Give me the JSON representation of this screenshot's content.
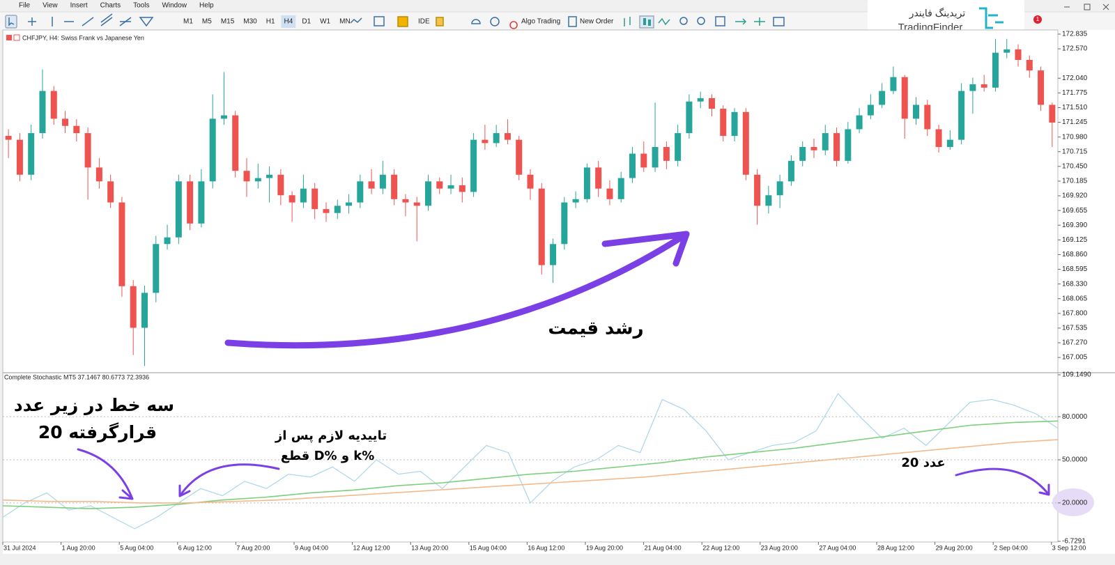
{
  "menu": [
    "File",
    "View",
    "Insert",
    "Charts",
    "Tools",
    "Window",
    "Help"
  ],
  "toolbar": {
    "timeframes": [
      "M1",
      "M5",
      "M15",
      "M30",
      "H1",
      "H4",
      "D1",
      "W1",
      "MN"
    ],
    "active": "H4",
    "ide": "IDE",
    "algo": "Algo Trading",
    "order": "New Order"
  },
  "logo": {
    "fa": "تریدینگ فایندر",
    "en": "TradingFinder"
  },
  "notification": "1",
  "chart_data": [
    {
      "type": "candlestick",
      "title": "CHFJPY, H4:  Swiss Frank vs Japanese Yen",
      "up_color": "#26a69a",
      "down_color": "#ef5350",
      "ylim": [
        166.755,
        172.91
      ],
      "yticks": [
        172.835,
        {
          "value": 172.57,
          "label": "172.570"
        },
        {
          "value": 172.04,
          "label": "172.040"
        },
        171.775,
        {
          "value": 171.51,
          "label": "171.510"
        },
        171.245,
        {
          "value": 170.98,
          "label": "170.980"
        },
        170.715,
        {
          "value": 170.45,
          "label": "170.450"
        },
        170.185,
        {
          "value": 169.92,
          "label": "169.920"
        },
        169.655,
        {
          "value": 169.39,
          "label": "169.390"
        },
        169.125,
        {
          "value": 168.86,
          "label": "168.860"
        },
        168.595,
        {
          "value": 168.33,
          "label": "168.330"
        },
        168.065,
        {
          "value": 167.8,
          "label": "167.800"
        },
        167.535,
        {
          "value": 167.27,
          "label": "167.270"
        },
        {
          "value": 167.005,
          "label": "167.005"
        }
      ],
      "ohlc": [
        [
          171.0,
          171.12,
          170.6,
          170.93
        ],
        [
          170.93,
          171.05,
          170.18,
          170.3
        ],
        [
          170.3,
          171.2,
          170.2,
          171.05
        ],
        [
          171.05,
          172.2,
          170.95,
          171.81
        ],
        [
          171.81,
          171.9,
          171.2,
          171.31
        ],
        [
          171.31,
          171.45,
          171.05,
          171.18
        ],
        [
          171.18,
          171.3,
          170.9,
          171.05
        ],
        [
          171.05,
          171.15,
          169.85,
          170.43
        ],
        [
          170.43,
          170.6,
          170.05,
          170.18
        ],
        [
          170.18,
          170.3,
          169.7,
          169.8
        ],
        [
          169.8,
          169.9,
          168.1,
          168.29
        ],
        [
          168.29,
          168.4,
          167.05,
          167.54
        ],
        [
          167.54,
          168.3,
          166.85,
          168.17
        ],
        [
          168.17,
          169.2,
          168.0,
          169.05
        ],
        [
          169.05,
          169.4,
          168.95,
          169.17
        ],
        [
          169.17,
          170.3,
          169.05,
          170.18
        ],
        [
          170.18,
          170.3,
          169.3,
          169.42
        ],
        [
          169.42,
          170.4,
          169.35,
          170.18
        ],
        [
          170.18,
          171.75,
          170.05,
          171.31
        ],
        [
          171.31,
          172.15,
          171.2,
          171.37
        ],
        [
          171.37,
          171.45,
          170.25,
          170.37
        ],
        [
          170.37,
          170.6,
          169.9,
          170.18
        ],
        [
          170.18,
          170.5,
          170.05,
          170.24
        ],
        [
          170.24,
          170.45,
          169.8,
          170.3
        ],
        [
          170.3,
          170.4,
          169.75,
          169.93
        ],
        [
          169.93,
          170.0,
          169.45,
          169.8
        ],
        [
          169.8,
          170.3,
          169.7,
          170.05
        ],
        [
          170.05,
          170.15,
          169.5,
          169.68
        ],
        [
          169.68,
          169.8,
          169.45,
          169.61
        ],
        [
          169.61,
          169.85,
          169.5,
          169.74
        ],
        [
          169.74,
          169.95,
          169.6,
          169.8
        ],
        [
          169.8,
          170.3,
          169.7,
          170.18
        ],
        [
          170.18,
          170.4,
          169.95,
          170.05
        ],
        [
          170.05,
          170.55,
          169.95,
          170.3
        ],
        [
          170.3,
          170.4,
          169.75,
          169.86
        ],
        [
          169.86,
          169.95,
          169.55,
          169.8
        ],
        [
          169.8,
          169.9,
          169.1,
          169.74
        ],
        [
          169.74,
          170.3,
          169.65,
          170.18
        ],
        [
          170.18,
          170.25,
          169.95,
          170.05
        ],
        [
          170.05,
          170.3,
          169.95,
          170.11
        ],
        [
          170.11,
          170.25,
          169.8,
          169.99
        ],
        [
          169.99,
          171.05,
          169.9,
          170.93
        ],
        [
          170.93,
          171.2,
          170.75,
          170.87
        ],
        [
          170.87,
          171.2,
          170.8,
          171.05
        ],
        [
          171.05,
          171.3,
          170.85,
          170.93
        ],
        [
          170.93,
          171.0,
          170.2,
          170.3
        ],
        [
          170.3,
          170.4,
          169.85,
          170.05
        ],
        [
          170.05,
          170.15,
          168.5,
          168.67
        ],
        [
          168.67,
          169.15,
          168.35,
          169.05
        ],
        [
          169.05,
          169.9,
          168.95,
          169.8
        ],
        [
          169.8,
          170.0,
          169.7,
          169.86
        ],
        [
          169.86,
          170.5,
          169.8,
          170.43
        ],
        [
          170.43,
          170.55,
          169.9,
          170.05
        ],
        [
          170.05,
          170.2,
          169.75,
          169.86
        ],
        [
          169.86,
          170.35,
          169.8,
          170.24
        ],
        [
          170.24,
          170.8,
          170.15,
          170.68
        ],
        [
          170.68,
          170.9,
          170.35,
          170.43
        ],
        [
          170.43,
          171.6,
          170.35,
          170.8
        ],
        [
          170.8,
          170.9,
          170.4,
          170.55
        ],
        [
          170.55,
          171.2,
          170.45,
          171.05
        ],
        [
          171.05,
          171.75,
          170.95,
          171.62
        ],
        [
          171.62,
          171.8,
          171.5,
          171.68
        ],
        [
          171.68,
          171.75,
          171.35,
          171.49
        ],
        [
          171.49,
          171.55,
          170.9,
          171.0
        ],
        [
          171.0,
          171.5,
          170.9,
          171.43
        ],
        [
          171.43,
          171.5,
          170.2,
          170.3
        ],
        [
          170.3,
          170.4,
          169.4,
          169.74
        ],
        [
          169.74,
          170.1,
          169.6,
          169.93
        ],
        [
          169.93,
          170.3,
          169.7,
          170.18
        ],
        [
          170.18,
          170.65,
          170.1,
          170.55
        ],
        [
          170.55,
          170.9,
          170.45,
          170.8
        ],
        [
          170.8,
          170.95,
          170.6,
          170.74
        ],
        [
          170.74,
          171.2,
          170.65,
          171.05
        ],
        [
          171.05,
          171.15,
          170.45,
          170.55
        ],
        [
          170.55,
          171.25,
          170.5,
          171.12
        ],
        [
          171.12,
          171.5,
          171.05,
          171.37
        ],
        [
          171.37,
          171.75,
          171.3,
          171.56
        ],
        [
          171.56,
          171.95,
          171.5,
          171.81
        ],
        [
          171.81,
          172.25,
          171.75,
          172.06
        ],
        [
          172.06,
          172.1,
          170.95,
          171.31
        ],
        [
          171.31,
          171.7,
          171.2,
          171.56
        ],
        [
          171.56,
          171.65,
          171.0,
          171.12
        ],
        [
          171.12,
          171.2,
          170.7,
          170.8
        ],
        [
          170.8,
          171.1,
          170.75,
          170.93
        ],
        [
          170.93,
          171.95,
          170.85,
          171.81
        ],
        [
          171.81,
          172.05,
          171.4,
          171.93
        ],
        [
          171.93,
          172.1,
          171.8,
          171.87
        ],
        [
          171.87,
          172.75,
          171.8,
          172.5
        ],
        [
          172.5,
          172.75,
          172.4,
          172.56
        ],
        [
          172.56,
          172.65,
          172.25,
          172.37
        ],
        [
          172.37,
          172.45,
          172.05,
          172.18
        ],
        [
          172.18,
          172.25,
          171.45,
          171.56
        ],
        [
          171.56,
          171.6,
          170.8,
          171.24
        ]
      ]
    },
    {
      "type": "line",
      "title": "Complete Stochastic MT5 37.1467 80.6773 72.3936",
      "ylim": [
        -6.7291,
        109.149
      ],
      "yticks": [
        {
          "value": 109.149,
          "label": "109.1490"
        },
        {
          "value": 80,
          "label": "80.0000"
        },
        {
          "value": 50,
          "label": "50.0000"
        },
        {
          "value": 20,
          "label": "20.0000"
        },
        {
          "value": -6.7291,
          "label": "-6.7291"
        }
      ],
      "series": [
        {
          "color": "#a9d6e8",
          "values": [
            10,
            20,
            27,
            15,
            18,
            10,
            2,
            10,
            20,
            30,
            25,
            35,
            30,
            40,
            38,
            45,
            35,
            50,
            40,
            42,
            30,
            45,
            60,
            55,
            20,
            35,
            45,
            50,
            60,
            55,
            92,
            85,
            70,
            50,
            55,
            60,
            62,
            70,
            96,
            80,
            65,
            72,
            60,
            75,
            90,
            92,
            88,
            82,
            72
          ]
        },
        {
          "color": "#7ccf7c",
          "values": [
            18,
            17,
            16,
            17,
            19,
            22,
            24,
            27,
            29,
            32,
            34,
            37,
            40,
            42,
            45,
            48,
            52,
            55,
            58,
            62,
            66,
            70,
            74,
            76,
            77
          ]
        },
        {
          "color": "#f4b98a",
          "values": [
            22,
            21,
            21,
            20,
            20,
            21,
            22,
            24,
            26,
            28,
            30,
            32,
            34,
            36,
            38,
            41,
            44,
            47,
            50,
            53,
            56,
            59,
            62,
            64
          ]
        }
      ]
    }
  ],
  "time_axis": [
    "31 Jul 2024",
    "1 Aug 20:00",
    "5 Aug 04:00",
    "6 Aug 12:00",
    "7 Aug 20:00",
    "9 Aug 04:00",
    "12 Aug 12:00",
    "13 Aug 20:00",
    "15 Aug 04:00",
    "16 Aug 12:00",
    "19 Aug 20:00",
    "21 Aug 04:00",
    "22 Aug 12:00",
    "23 Aug 20:00",
    "27 Aug 04:00",
    "28 Aug 12:00",
    "29 Aug 20:00",
    "2 Sep 04:00",
    "3 Sep 12:00"
  ],
  "annotations": {
    "growth": "رشد قیمت",
    "three_lines_1": "سه خط در زیر عدد",
    "three_lines_2": "20 قرارگرفته",
    "confirm_1": "تاییدیه لازم پس از",
    "confirm_2": "قطع D% و k%",
    "level": "عدد 20"
  }
}
